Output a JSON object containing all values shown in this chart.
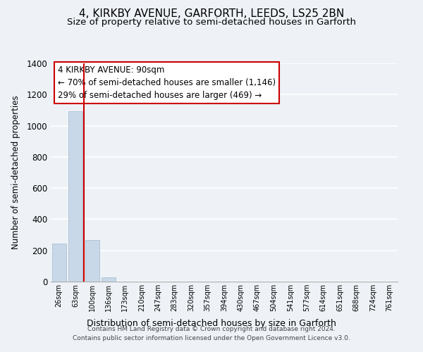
{
  "title": "4, KIRKBY AVENUE, GARFORTH, LEEDS, LS25 2BN",
  "subtitle": "Size of property relative to semi-detached houses in Garforth",
  "xlabel": "Distribution of semi-detached houses by size in Garforth",
  "ylabel": "Number of semi-detached properties",
  "categories": [
    "26sqm",
    "63sqm",
    "100sqm",
    "136sqm",
    "173sqm",
    "210sqm",
    "247sqm",
    "283sqm",
    "320sqm",
    "357sqm",
    "394sqm",
    "430sqm",
    "467sqm",
    "504sqm",
    "541sqm",
    "577sqm",
    "614sqm",
    "651sqm",
    "688sqm",
    "724sqm",
    "761sqm"
  ],
  "values": [
    245,
    1095,
    265,
    28,
    0,
    0,
    0,
    0,
    0,
    0,
    0,
    0,
    0,
    0,
    0,
    0,
    0,
    0,
    0,
    0,
    0
  ],
  "bar_color": "#c8d8e8",
  "bar_edge_color": "#a0b8cc",
  "highlight_index": 2,
  "highlight_line_color": "#cc0000",
  "ylim": [
    0,
    1400
  ],
  "yticks": [
    0,
    200,
    400,
    600,
    800,
    1000,
    1200,
    1400
  ],
  "annotation_box_text_line1": "4 KIRKBY AVENUE: 90sqm",
  "annotation_box_text_line2": "← 70% of semi-detached houses are smaller (1,146)",
  "annotation_box_text_line3": "29% of semi-detached houses are larger (469) →",
  "annotation_box_color": "#ffffff",
  "annotation_box_edge_color": "#cc0000",
  "footer_line1": "Contains HM Land Registry data © Crown copyright and database right 2024.",
  "footer_line2": "Contains public sector information licensed under the Open Government Licence v3.0.",
  "background_color": "#eef2f7",
  "grid_color": "#ffffff",
  "title_fontsize": 11,
  "subtitle_fontsize": 9.5,
  "ylabel_fontsize": 8.5,
  "xlabel_fontsize": 9,
  "footer_fontsize": 6.5
}
